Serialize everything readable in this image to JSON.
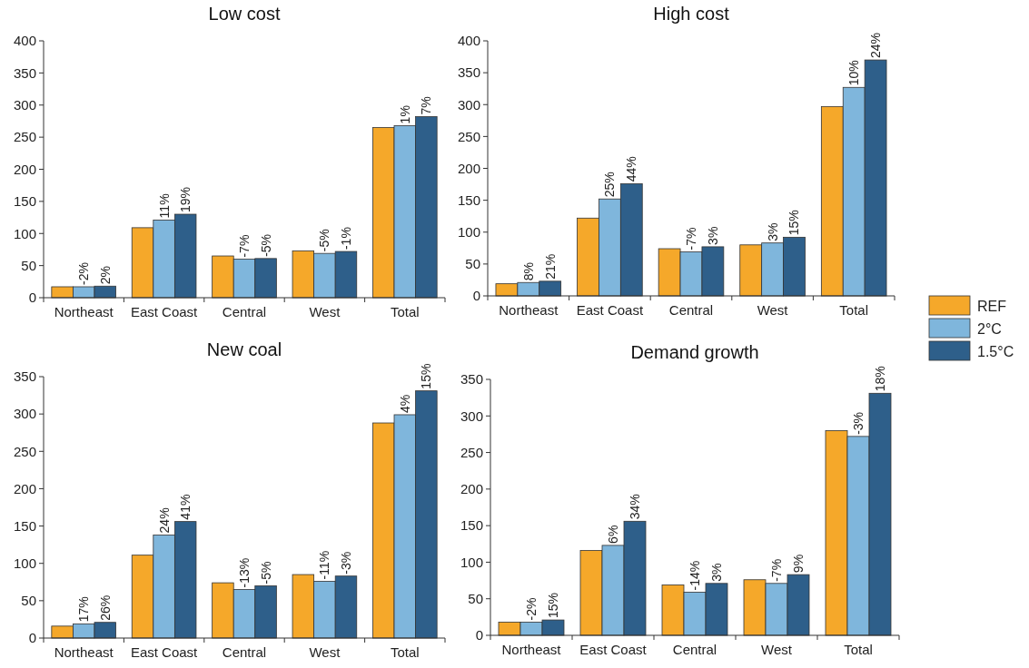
{
  "chart_data": [
    {
      "type": "bar",
      "title": "Low cost",
      "categories": [
        "Northeast",
        "East Coast",
        "Central",
        "West",
        "Total"
      ],
      "ylim": [
        0,
        400
      ],
      "yticks": [
        0,
        50,
        100,
        150,
        200,
        250,
        300,
        350,
        400
      ],
      "grid": false,
      "legend": false,
      "series": [
        {
          "color": "#f5a82a",
          "values": [
            17,
            109,
            65,
            73,
            265
          ]
        },
        {
          "color": "#7fb6dc",
          "values": [
            17,
            121,
            60,
            69,
            268
          ]
        },
        {
          "color": "#2e5f8a",
          "values": [
            18,
            130,
            61,
            72,
            282
          ]
        }
      ],
      "annotations": [
        "-2%",
        "2%",
        "11%",
        "19%",
        "-7%",
        "-5%",
        "-5%",
        "-1%",
        "1%",
        "7%"
      ]
    },
    {
      "type": "bar",
      "title": "High cost",
      "categories": [
        "Northeast",
        "East Coast",
        "Central",
        "West",
        "Total"
      ],
      "ylim": [
        0,
        400
      ],
      "yticks": [
        0,
        50,
        100,
        150,
        200,
        250,
        300,
        350,
        400
      ],
      "grid": false,
      "legend": "right",
      "series": [
        {
          "name": "REF",
          "color": "#f5a82a",
          "values": [
            19,
            122,
            74,
            80,
            297
          ]
        },
        {
          "name": "2°C",
          "color": "#7fb6dc",
          "values": [
            21,
            152,
            69,
            83,
            327
          ]
        },
        {
          "name": "1.5°C",
          "color": "#2e5f8a",
          "values": [
            23,
            176,
            77,
            92,
            370
          ]
        }
      ],
      "annotations": [
        "8%",
        "21%",
        "25%",
        "44%",
        "-7%",
        "3%",
        "3%",
        "15%",
        "10%",
        "24%"
      ]
    },
    {
      "type": "bar",
      "title": "New coal",
      "categories": [
        "Northeast",
        "East Coast",
        "Central",
        "West",
        "Total"
      ],
      "ylim": [
        0,
        350
      ],
      "yticks": [
        0,
        50,
        100,
        150,
        200,
        250,
        300,
        350
      ],
      "grid": false,
      "legend": false,
      "series": [
        {
          "color": "#f5a82a",
          "values": [
            16,
            111,
            74,
            85,
            288
          ]
        },
        {
          "color": "#7fb6dc",
          "values": [
            19,
            138,
            65,
            76,
            299
          ]
        },
        {
          "color": "#2e5f8a",
          "values": [
            21,
            156,
            70,
            83,
            331
          ]
        }
      ],
      "annotations": [
        "17%",
        "26%",
        "24%",
        "41%",
        "-13%",
        "-5%",
        "-11%",
        "-3%",
        "4%",
        "15%"
      ]
    },
    {
      "type": "bar",
      "title": "Demand growth",
      "categories": [
        "Northeast",
        "East Coast",
        "Central",
        "West",
        "Total"
      ],
      "ylim": [
        0,
        350
      ],
      "yticks": [
        0,
        50,
        100,
        150,
        200,
        250,
        300,
        350
      ],
      "grid": false,
      "legend": false,
      "series": [
        {
          "color": "#f5a82a",
          "values": [
            18,
            116,
            69,
            76,
            280
          ]
        },
        {
          "color": "#7fb6dc",
          "values": [
            18,
            123,
            59,
            71,
            272
          ]
        },
        {
          "color": "#2e5f8a",
          "values": [
            21,
            156,
            71,
            83,
            331
          ]
        }
      ],
      "annotations": [
        "-2%",
        "15%",
        "6%",
        "34%",
        "-14%",
        "3%",
        "-7%",
        "9%",
        "-3%",
        "18%"
      ]
    }
  ]
}
